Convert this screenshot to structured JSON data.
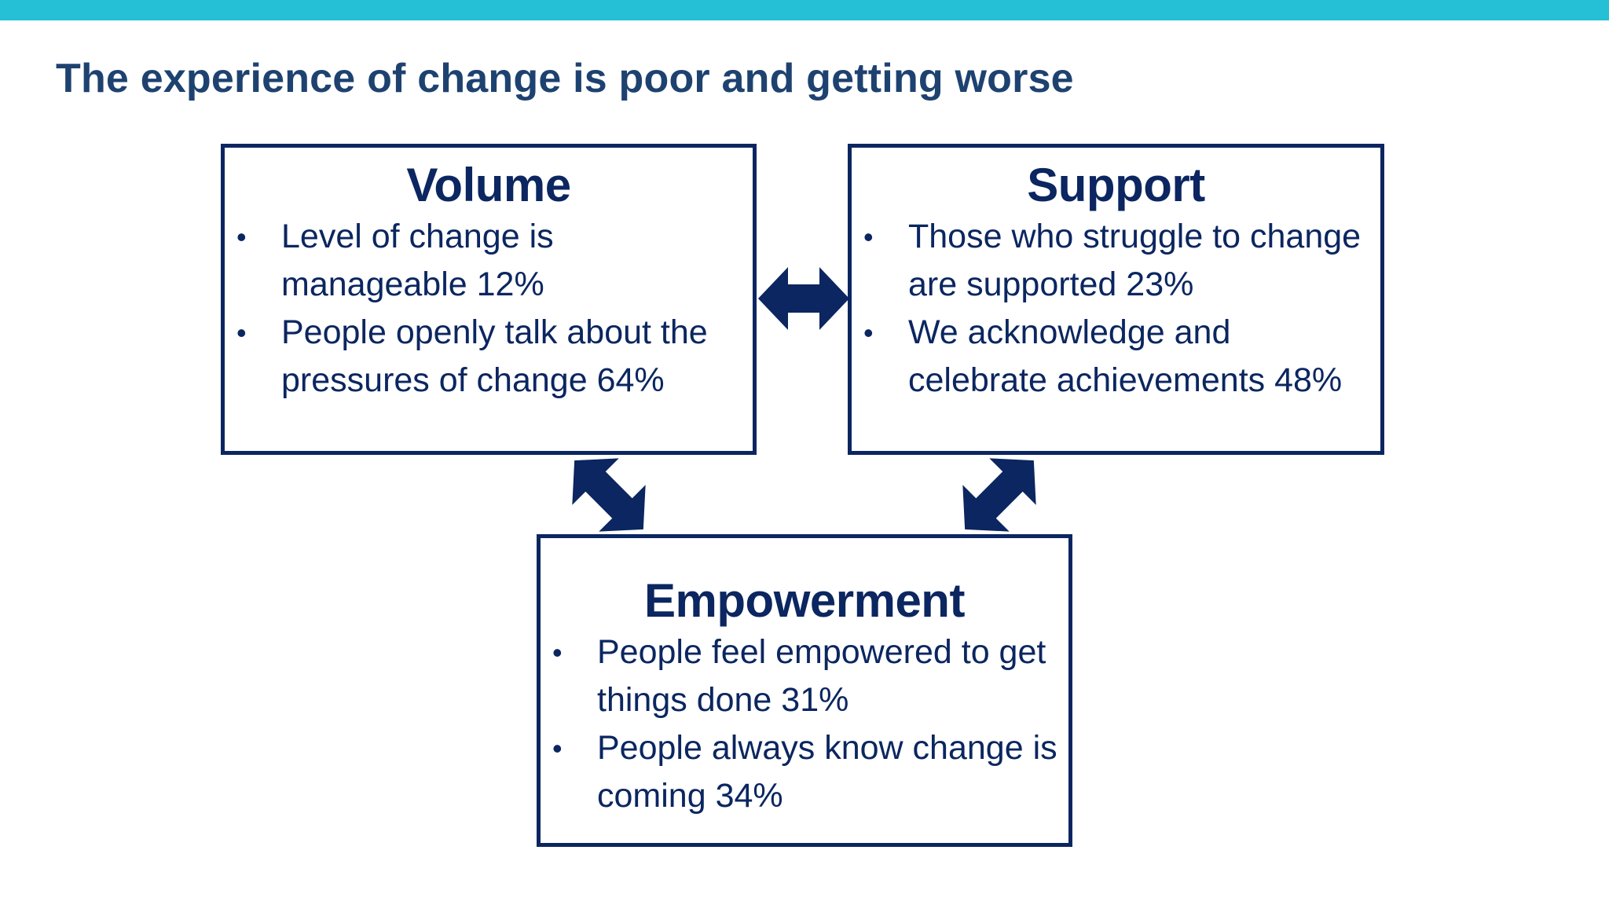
{
  "slide": {
    "title": "The experience of change is poor and getting worse",
    "accent_bar_color": "#25bfd6",
    "title_color": "#1e4270",
    "box_color": "#0b2660"
  },
  "boxes": {
    "volume": {
      "heading": "Volume",
      "bullets": [
        "Level of change is manageable 12%",
        "People openly talk about the pressures of change 64%"
      ]
    },
    "support": {
      "heading": "Support",
      "bullets": [
        "Those who struggle to change are supported 23%",
        "We acknowledge and celebrate achievements 48%"
      ]
    },
    "empowerment": {
      "heading": "Empowerment",
      "bullets": [
        "People feel empowered to get things done 31%",
        "People always know change is coming 34%"
      ]
    }
  },
  "bullet_symbol": "•",
  "connectors": [
    {
      "from": "volume",
      "to": "support",
      "icon": "double-arrow-icon"
    },
    {
      "from": "volume",
      "to": "empowerment",
      "icon": "double-arrow-icon"
    },
    {
      "from": "support",
      "to": "empowerment",
      "icon": "double-arrow-icon"
    }
  ]
}
